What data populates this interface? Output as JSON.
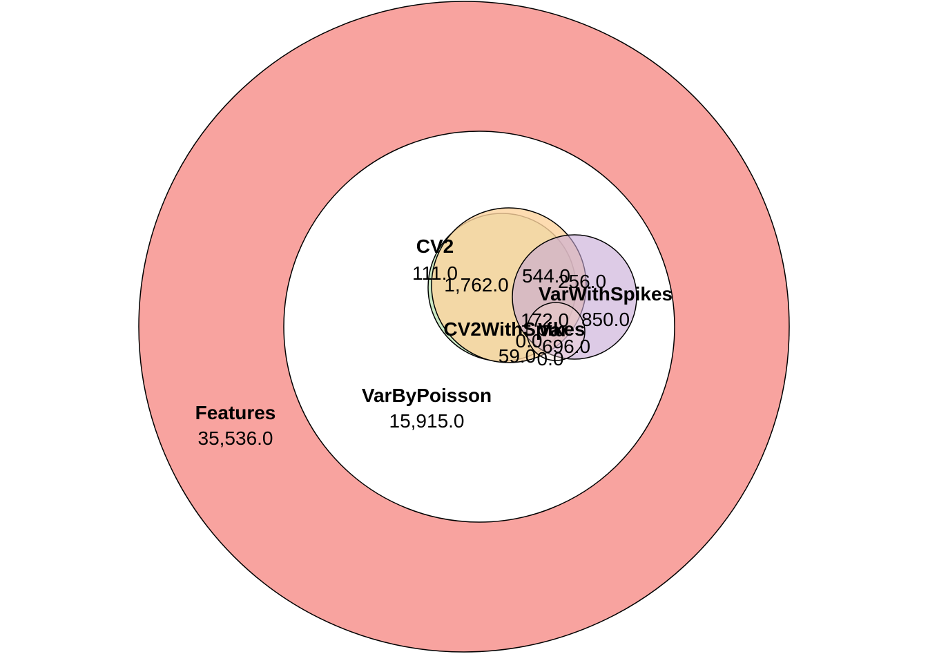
{
  "diagram": {
    "type": "euler",
    "sets": [
      {
        "name": "Features",
        "color": "#f8a39f"
      },
      {
        "name": "VarByPoisson",
        "color": "#ffffff"
      },
      {
        "name": "CV2",
        "color": "#c6e8c0"
      },
      {
        "name": "CV2WithSpikes",
        "color": "#fdd39e"
      },
      {
        "name": "VarWithSpikes",
        "color": "#d6bfdf"
      },
      {
        "name": "Var",
        "color": "#f6d6d0"
      }
    ],
    "counts": {
      "features_only": "35,536.0",
      "varbypoisson_only": "15,915.0",
      "cv2": "111.0",
      "cv2_cv2withspikes": "1,762.0",
      "cv2_cv2withspikes_varwithspikes": "544.0",
      "cv2withspikes_varwithspikes": "256.0",
      "varwithspikes": "850.0",
      "var_1": "172.0",
      "var_2": "0.0",
      "var_3": "696.0",
      "cv2withspikes_var": "59.0",
      "var_4": "0.0"
    }
  }
}
